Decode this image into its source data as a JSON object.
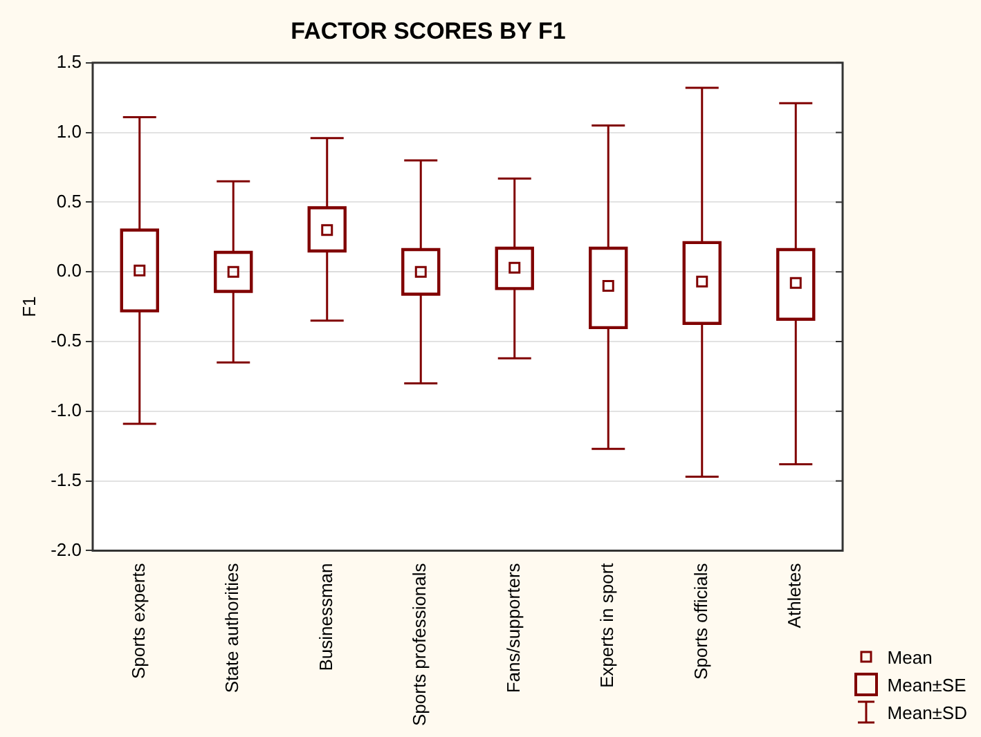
{
  "chart_data": {
    "type": "box",
    "title": "FACTOR SCORES BY F1",
    "ylabel": "F1",
    "categories": [
      "Sports experts",
      "State authorities",
      "Businessman",
      "Sports professionals",
      "Fans/supporters",
      "Experts in sport",
      "Sports officials",
      "Athletes"
    ],
    "series": [
      {
        "color": "#800000",
        "boxes": [
          {
            "low": -1.09,
            "q1": -0.28,
            "q3": 0.3,
            "high": 1.11,
            "mean": 0.01
          },
          {
            "low": -0.65,
            "q1": -0.14,
            "q3": 0.14,
            "high": 0.65,
            "mean": 0.0
          },
          {
            "low": -0.35,
            "q1": 0.15,
            "q3": 0.46,
            "high": 0.96,
            "mean": 0.3
          },
          {
            "low": -0.8,
            "q1": -0.16,
            "q3": 0.16,
            "high": 0.8,
            "mean": 0.0
          },
          {
            "low": -0.62,
            "q1": -0.12,
            "q3": 0.17,
            "high": 0.67,
            "mean": 0.03
          },
          {
            "low": -1.27,
            "q1": -0.4,
            "q3": 0.17,
            "high": 1.05,
            "mean": -0.1
          },
          {
            "low": -1.47,
            "q1": -0.37,
            "q3": 0.21,
            "high": 1.32,
            "mean": -0.07
          },
          {
            "low": -1.38,
            "q1": -0.34,
            "q3": 0.16,
            "high": 1.21,
            "mean": -0.08
          }
        ]
      }
    ],
    "ylim": [
      -2.0,
      1.5
    ],
    "yticks": [
      {
        "value": -2,
        "label": "-2.0"
      },
      {
        "value": -1.5,
        "label": "-1.5"
      },
      {
        "value": -1,
        "label": "-1.0"
      },
      {
        "value": -0.5,
        "label": "-0.5"
      },
      {
        "value": 0,
        "label": "0.0"
      },
      {
        "value": 0.5,
        "label": "0.5"
      },
      {
        "value": 1,
        "label": "1.0"
      },
      {
        "value": 1.5,
        "label": "1.5"
      }
    ],
    "grid": "y",
    "marker": "square",
    "annotations": [
      "Mean",
      "Mean±SE",
      "Mean±SD"
    ]
  }
}
